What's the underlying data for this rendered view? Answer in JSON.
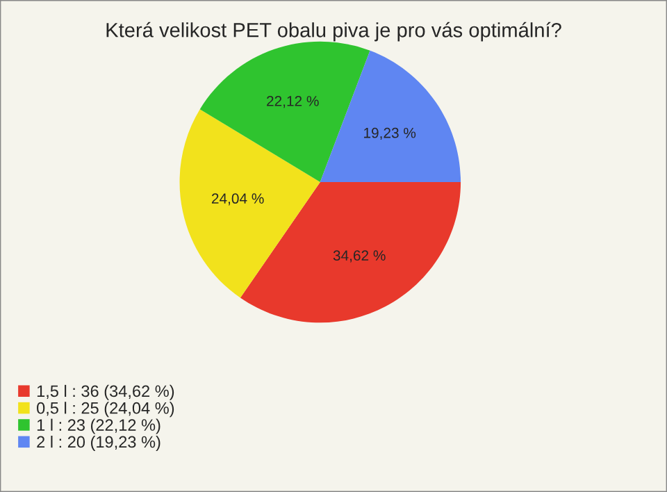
{
  "chart_data": {
    "type": "pie",
    "title": "Která velikost PET obalu piva je pro vás optimální?",
    "categories": [
      "1,5 l : 36 (34,62 %)",
      "0,5 l : 25 (24,04 %)",
      "1 l : 23 (22,12 %)",
      "2 l : 20 (19,23 %)"
    ],
    "values": [
      34.62,
      24.04,
      22.12,
      19.23
    ],
    "value_labels": [
      "34,62 %",
      "24,04 %",
      "22,12 %",
      "19,23 %"
    ],
    "colors": [
      "#e8392c",
      "#f2e21c",
      "#2fc42f",
      "#5f86f2"
    ],
    "legend": "bottom left"
  }
}
